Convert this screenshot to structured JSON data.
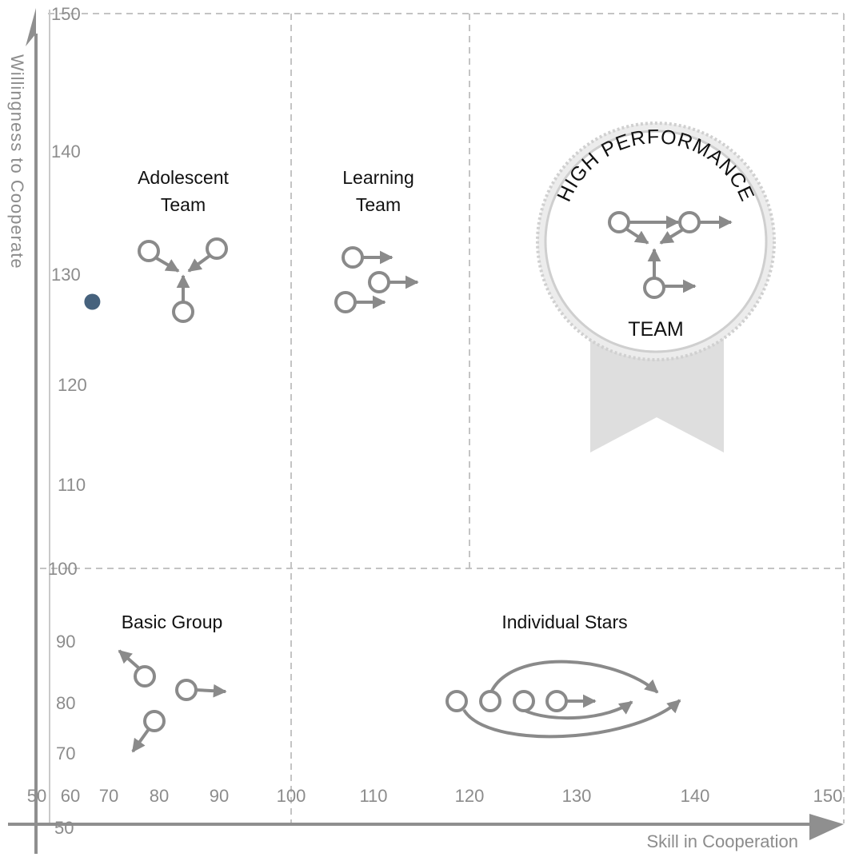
{
  "chart_data": {
    "type": "scatter",
    "xlabel": "Skill in Cooperation",
    "ylabel": "Willingness to Cooperate",
    "xlim": [
      50,
      150
    ],
    "ylim": [
      50,
      150
    ],
    "x_ticks_left": [
      "50",
      "60",
      "70",
      "80",
      "90",
      "100"
    ],
    "x_ticks_right": [
      "100",
      "110",
      "120",
      "130",
      "140",
      "150"
    ],
    "y_ticks_top": [
      "150",
      "140",
      "130",
      "120",
      "110",
      "100"
    ],
    "y_ticks_bottom": [
      "100",
      "90",
      "80",
      "70",
      "60",
      "50"
    ],
    "dividers": {
      "x": 100,
      "x_top_only": 120,
      "y": 100
    },
    "regions": [
      {
        "name": "Adolescent Team",
        "lines": [
          "Adolescent",
          "Team"
        ]
      },
      {
        "name": "Learning Team",
        "lines": [
          "Learning",
          "Team"
        ]
      },
      {
        "name": "Basic Group",
        "lines": [
          "Basic Group"
        ]
      },
      {
        "name": "Individual Stars",
        "lines": [
          "Individual Stars"
        ]
      }
    ],
    "badge": {
      "arc_text": "HIGH PERFORMANCE",
      "bottom_text": "TEAM"
    },
    "points": [
      {
        "x": 52,
        "y": 127.5,
        "color": "#46627d"
      }
    ],
    "grid": true,
    "legend": "none"
  },
  "colors": {
    "axis": "#8f8f8f",
    "grid": "#c4c4c4",
    "icon": "#8a8a8a",
    "ribbon": "#dedede",
    "seal_edge": "#d0d0d0"
  }
}
